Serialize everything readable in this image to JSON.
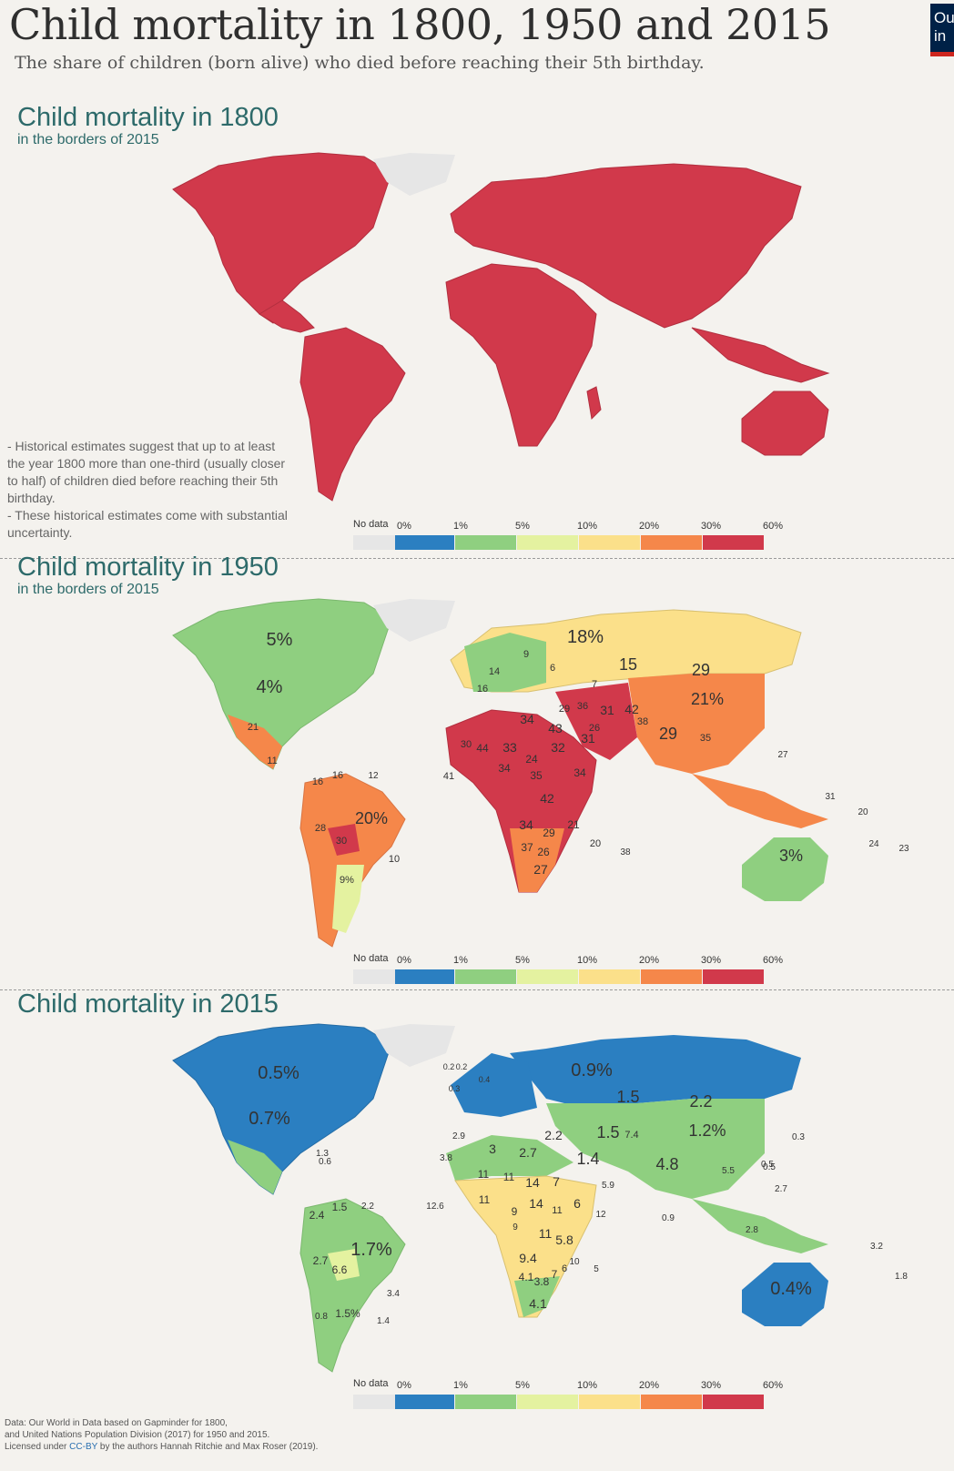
{
  "header": {
    "title": "Child mortality in 1800, 1950 and 2015",
    "subtitle": "The share of children (born alive) who died before reaching their 5th birthday.",
    "logo_text": "Our in"
  },
  "legend": {
    "no_data_label": "No data",
    "ticks": [
      "0%",
      "1%",
      "5%",
      "10%",
      "20%",
      "30%",
      "60%"
    ],
    "colors": [
      "#2b7fc1",
      "#8fcf80",
      "#e4f2a0",
      "#fbe08a",
      "#f5874a",
      "#d1394b"
    ],
    "no_data_color": "#e6e6e6"
  },
  "sections": [
    {
      "year": "1800",
      "title": "Child mortality in 1800",
      "subtitle": "in the borders of 2015",
      "note": "- Historical estimates suggest that up to at least the year 1800 more than one-third (usually closer to half) of children died before reaching their 5th birthday.\n- These historical estimates come with substantial uncertainty.",
      "labels": []
    },
    {
      "year": "1950",
      "title": "Child mortality in 1950",
      "subtitle": "in the borders of 2015",
      "labels": [
        "5%",
        "4%",
        "18%",
        "15",
        "29",
        "21%",
        "20%",
        "3%",
        "9%",
        "21",
        "30",
        "28",
        "16",
        "16",
        "10",
        "12",
        "29",
        "34",
        "43",
        "31",
        "31",
        "42",
        "36",
        "38",
        "29",
        "35",
        "44",
        "30",
        "33",
        "32",
        "24",
        "34",
        "34",
        "41",
        "35",
        "42",
        "34",
        "29",
        "37",
        "26",
        "27",
        "21",
        "20",
        "38",
        "31",
        "20",
        "24",
        "23",
        "27",
        "16",
        "14",
        "9",
        "6",
        "11",
        "7",
        "26",
        "20",
        "29"
      ]
    },
    {
      "year": "2015",
      "title": "Child mortality in 2015",
      "subtitle": "",
      "labels": [
        "0.5%",
        "0.7%",
        "0.9%",
        "1.5",
        "2.2",
        "1.2%",
        "1.5",
        "7.4",
        "4.8",
        "1.4",
        "2.2",
        "2.7",
        "3",
        "2.9",
        "3.8",
        "11",
        "11",
        "14",
        "7",
        "11",
        "14",
        "11",
        "6",
        "9",
        "11",
        "5.8",
        "9.4",
        "4.1",
        "3.8",
        "7",
        "6",
        "4.1",
        "1.7%",
        "6.6",
        "2.7",
        "2.4",
        "1.5",
        "1.5%",
        "1.4",
        "0.8",
        "3.4",
        "2.2",
        "1.3",
        "0.6",
        "0.4%",
        "0.5",
        "2.7",
        "1.8",
        "3.2",
        "5.5",
        "2.8",
        "0.3",
        "0.5",
        "0.2",
        "0.2",
        "0.3",
        "0.4",
        "12.6",
        "5.9",
        "0.9",
        "12",
        "5",
        "10",
        "9"
      ]
    }
  ],
  "footer": {
    "line1": "Data: Our World in Data based on Gapminder for 1800,",
    "line2": "and United Nations Population Division (2017) for 1950 and 2015.",
    "line3_pre": "Licensed under ",
    "line3_link": "CC-BY",
    "line3_post": " by the authors Hannah Ritchie and Max Roser (2019)."
  }
}
